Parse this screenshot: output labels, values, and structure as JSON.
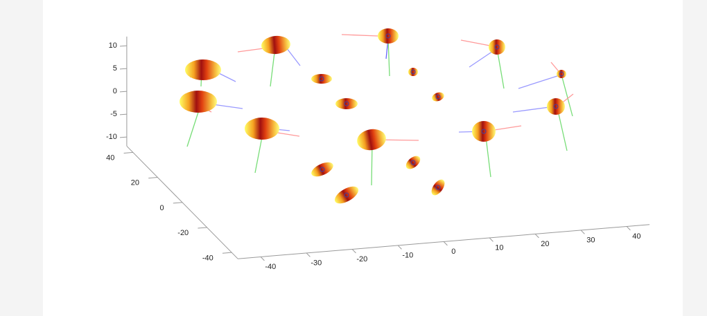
{
  "chart_data": {
    "type": "scatter3d",
    "xlim": [
      -45,
      45
    ],
    "xticks": [
      -40,
      -30,
      -20,
      -10,
      0,
      10,
      20,
      30,
      40
    ],
    "ylim": [
      -45,
      45
    ],
    "yticks": [
      -40,
      -20,
      0,
      20,
      40
    ],
    "zlim": [
      -12,
      12
    ],
    "zticks": [
      -10,
      -5,
      0,
      5,
      10
    ]
  }
}
